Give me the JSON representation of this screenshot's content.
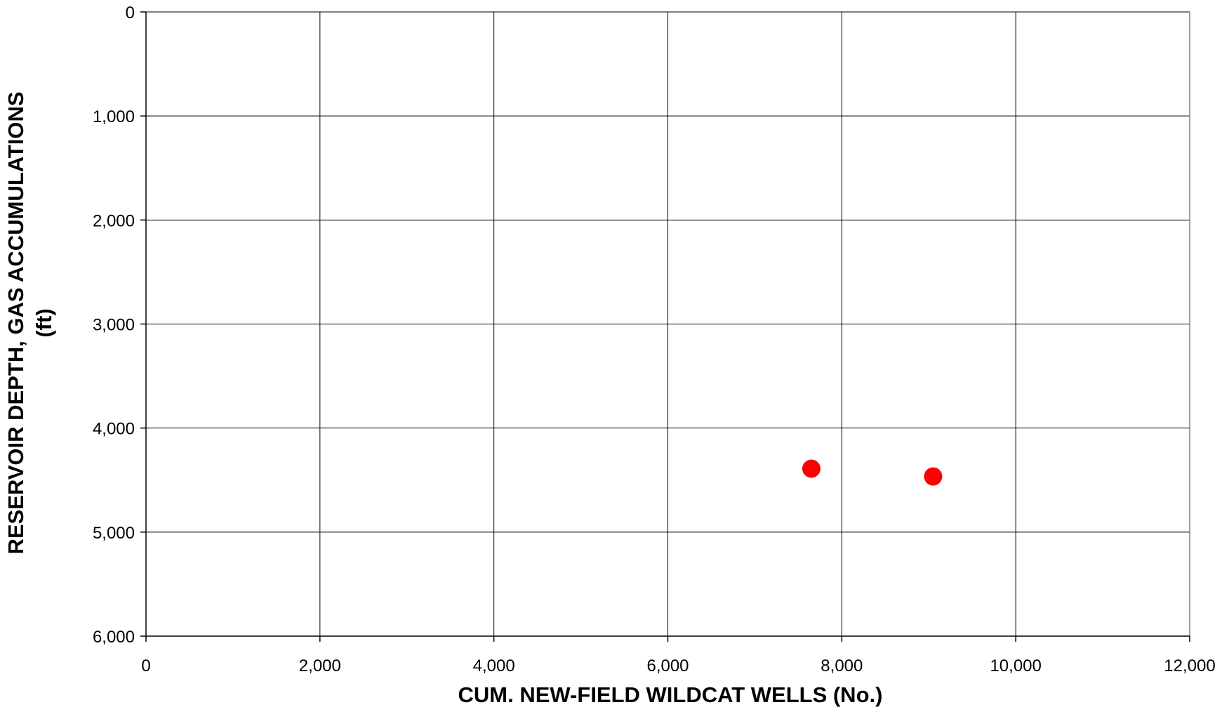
{
  "chart_data": {
    "type": "scatter",
    "title": "",
    "xlabel": "CUM. NEW-FIELD WILDCAT WELLS (No.)",
    "ylabel_lines": [
      "RESERVOIR DEPTH, GAS ACCUMULATIONS",
      "(ft)"
    ],
    "xlim": [
      0,
      12000
    ],
    "ylim": [
      0,
      6000
    ],
    "y_axis_inverted": true,
    "x_ticks": [
      0,
      2000,
      4000,
      6000,
      8000,
      10000,
      12000
    ],
    "x_tick_labels": [
      "0",
      "2,000",
      "4,000",
      "6,000",
      "8,000",
      "10,000",
      "12,000"
    ],
    "y_ticks": [
      0,
      1000,
      2000,
      3000,
      4000,
      5000,
      6000
    ],
    "y_tick_labels": [
      "0",
      "1,000",
      "2,000",
      "3,000",
      "4,000",
      "5,000",
      "6,000"
    ],
    "grid": true,
    "legend": "none",
    "series": [
      {
        "color": "#ff0000",
        "marker": "circle",
        "points": [
          {
            "x": 7650,
            "y": 4390
          },
          {
            "x": 9050,
            "y": 4465
          }
        ]
      }
    ]
  }
}
